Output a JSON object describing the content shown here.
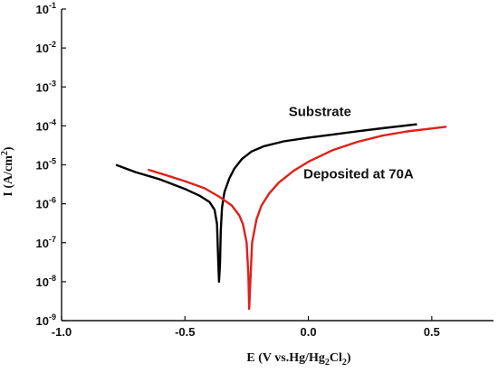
{
  "chart_data": {
    "type": "line",
    "xlabel": "E (V vs.Hg/Hg2Cl2)",
    "xlabel_parts": {
      "main": "E (V vs.Hg/Hg",
      "sub1": "2",
      "mid": "Cl",
      "sub2": "2",
      "end": ")"
    },
    "ylabel": "I (A/cm2)",
    "ylabel_parts": {
      "main": "I (A/cm",
      "sup": "2",
      "end": ")"
    },
    "xlim": [
      -1.0,
      0.75
    ],
    "ylim": [
      1e-09,
      0.1
    ],
    "y_scale": "log",
    "x_ticks": [
      {
        "value": -1.0,
        "label": "-1.0"
      },
      {
        "value": -0.5,
        "label": "-0.5"
      },
      {
        "value": 0.0,
        "label": "0.0"
      },
      {
        "value": 0.5,
        "label": "0.5"
      }
    ],
    "y_ticks": [
      {
        "exp": -1,
        "base": "10",
        "sup": "-1"
      },
      {
        "exp": -2,
        "base": "10",
        "sup": "-2"
      },
      {
        "exp": -3,
        "base": "10",
        "sup": "-3"
      },
      {
        "exp": -4,
        "base": "10",
        "sup": "-4"
      },
      {
        "exp": -5,
        "base": "10",
        "sup": "-5"
      },
      {
        "exp": -6,
        "base": "10",
        "sup": "-6"
      },
      {
        "exp": -7,
        "base": "10",
        "sup": "-7"
      },
      {
        "exp": -8,
        "base": "10",
        "sup": "-8"
      },
      {
        "exp": -9,
        "base": "10",
        "sup": "-9"
      }
    ],
    "grid": false,
    "annotations": [
      {
        "text": "Substrate",
        "x": -0.08,
        "y": 0.00018
      },
      {
        "text": "Deposited at 70A",
        "x": -0.02,
        "y": 4.5e-06
      }
    ],
    "series": [
      {
        "color": "#000000",
        "points": [
          [
            -0.78,
            1e-05
          ],
          [
            -0.7,
            6.5e-06
          ],
          [
            -0.6,
            4.2e-06
          ],
          [
            -0.5,
            2.4e-06
          ],
          [
            -0.44,
            1.6e-06
          ],
          [
            -0.4,
            1.1e-06
          ],
          [
            -0.38,
            7e-07
          ],
          [
            -0.37,
            3e-07
          ],
          [
            -0.365,
            3e-08
          ],
          [
            -0.362,
            1e-08
          ],
          [
            -0.358,
            3e-08
          ],
          [
            -0.355,
            2e-07
          ],
          [
            -0.35,
            8e-07
          ],
          [
            -0.34,
            2e-06
          ],
          [
            -0.32,
            4.5e-06
          ],
          [
            -0.3,
            8e-06
          ],
          [
            -0.27,
            1.4e-05
          ],
          [
            -0.23,
            2.2e-05
          ],
          [
            -0.18,
            3e-05
          ],
          [
            -0.1,
            4e-05
          ],
          [
            0.0,
            5e-05
          ],
          [
            0.1,
            6e-05
          ],
          [
            0.2,
            7.3e-05
          ],
          [
            0.3,
            8.7e-05
          ],
          [
            0.44,
            0.00011
          ]
        ]
      },
      {
        "color": "#e0201b",
        "points": [
          [
            -0.65,
            7.5e-06
          ],
          [
            -0.58,
            5.5e-06
          ],
          [
            -0.5,
            3.8e-06
          ],
          [
            -0.42,
            2.5e-06
          ],
          [
            -0.36,
            1.5e-06
          ],
          [
            -0.31,
            9e-07
          ],
          [
            -0.28,
            5e-07
          ],
          [
            -0.265,
            3e-07
          ],
          [
            -0.25,
            1e-07
          ],
          [
            -0.243,
            1.5e-08
          ],
          [
            -0.24,
            2e-09
          ],
          [
            -0.235,
            1e-08
          ],
          [
            -0.228,
            1e-07
          ],
          [
            -0.21,
            4e-07
          ],
          [
            -0.19,
            9e-07
          ],
          [
            -0.16,
            1.8e-06
          ],
          [
            -0.12,
            3.5e-06
          ],
          [
            -0.06,
            7e-06
          ],
          [
            0.0,
            1.2e-05
          ],
          [
            0.1,
            2.4e-05
          ],
          [
            0.2,
            3.9e-05
          ],
          [
            0.3,
            5.6e-05
          ],
          [
            0.4,
            7.2e-05
          ],
          [
            0.56,
            9.5e-05
          ]
        ]
      }
    ]
  }
}
